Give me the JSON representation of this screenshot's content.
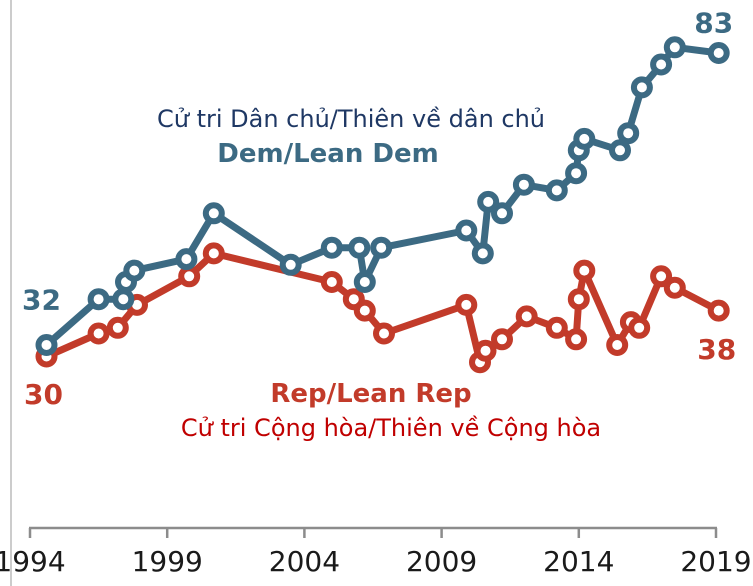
{
  "labels": {
    "dem_viet": "Cử tri Dân chủ/Thiên về dân chủ",
    "dem_en": "Dem/Lean Dem",
    "rep_en": "Rep/Lean Rep",
    "rep_viet": "Cử tri Cộng hòa/Thiên về Cộng hòa"
  },
  "colors": {
    "dem": "#3C6A83",
    "rep": "#C23B2A",
    "dem_viet_text": "#1F3864",
    "rep_viet_text": "#C00000",
    "axis": "#8C8C8C",
    "tick_label": "#1A1A1A"
  },
  "chart_data": {
    "type": "line",
    "title": "",
    "xlabel": "",
    "ylabel": "",
    "grid": false,
    "legend_position": "inline-text-labels",
    "x_ticks": [
      "1994",
      "1999",
      "2004",
      "2009",
      "2014",
      "2019"
    ],
    "xlim": [
      1994,
      2019.2
    ],
    "ylim": [
      25,
      90
    ],
    "endpoint_labels": {
      "dem_start": "32",
      "rep_start": "30",
      "dem_end": "83",
      "rep_end": "38"
    },
    "series": [
      {
        "name": "Dem/Lean Dem",
        "color": "#3C6A83",
        "points": [
          [
            1994.6,
            32
          ],
          [
            1996.5,
            40
          ],
          [
            1997.4,
            40
          ],
          [
            1997.5,
            43
          ],
          [
            1997.8,
            45
          ],
          [
            1999.7,
            47
          ],
          [
            2000.7,
            55
          ],
          [
            2003.5,
            46
          ],
          [
            2005.0,
            49
          ],
          [
            2006.0,
            49
          ],
          [
            2006.2,
            43
          ],
          [
            2006.8,
            49
          ],
          [
            2009.9,
            52
          ],
          [
            2010.5,
            48
          ],
          [
            2010.7,
            57
          ],
          [
            2011.2,
            55
          ],
          [
            2012.0,
            60
          ],
          [
            2013.2,
            59
          ],
          [
            2013.9,
            62
          ],
          [
            2014.0,
            66
          ],
          [
            2014.2,
            68
          ],
          [
            2015.5,
            66
          ],
          [
            2015.8,
            69
          ],
          [
            2016.3,
            77
          ],
          [
            2017.0,
            81
          ],
          [
            2017.5,
            84
          ],
          [
            2019.1,
            83
          ]
        ]
      },
      {
        "name": "Rep/Lean Rep",
        "color": "#C23B2A",
        "points": [
          [
            1994.6,
            30
          ],
          [
            1996.5,
            34
          ],
          [
            1997.2,
            35
          ],
          [
            1997.9,
            39
          ],
          [
            1999.8,
            44
          ],
          [
            2000.7,
            48
          ],
          [
            2005.0,
            43
          ],
          [
            2005.8,
            40
          ],
          [
            2006.2,
            38
          ],
          [
            2006.9,
            34
          ],
          [
            2009.9,
            39
          ],
          [
            2010.4,
            29
          ],
          [
            2010.6,
            31
          ],
          [
            2011.2,
            33
          ],
          [
            2012.1,
            37
          ],
          [
            2013.2,
            35
          ],
          [
            2013.9,
            33
          ],
          [
            2014.0,
            40
          ],
          [
            2014.2,
            45
          ],
          [
            2015.4,
            32
          ],
          [
            2015.9,
            36
          ],
          [
            2016.2,
            35
          ],
          [
            2017.0,
            44
          ],
          [
            2017.5,
            42
          ],
          [
            2019.1,
            38
          ]
        ]
      }
    ]
  }
}
